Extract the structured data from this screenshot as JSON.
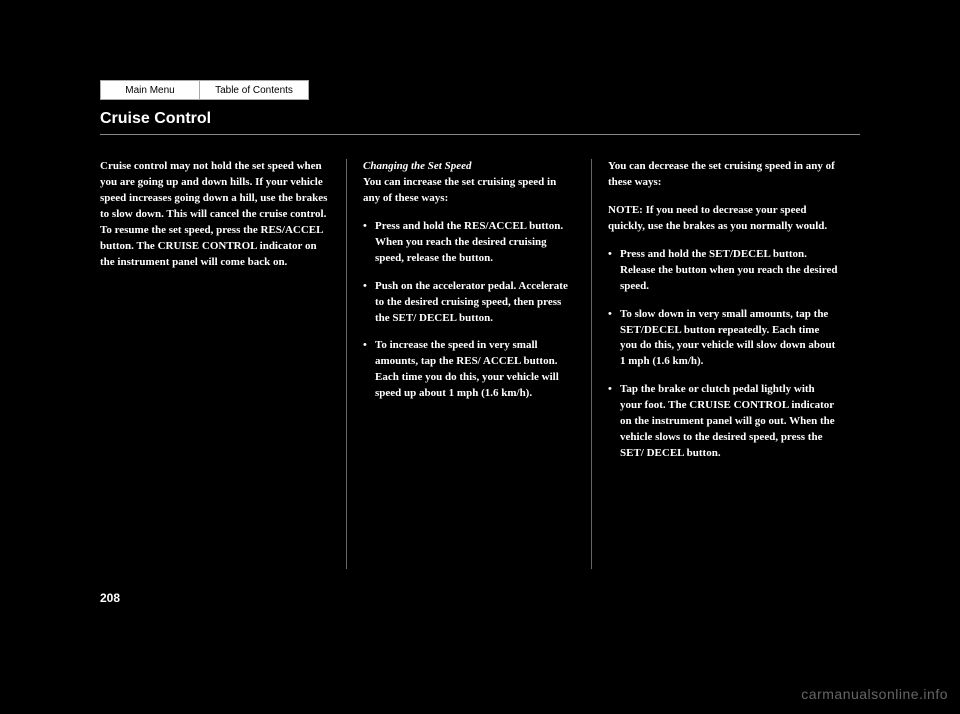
{
  "nav": {
    "main_menu": "Main Menu",
    "toc": "Table of Contents"
  },
  "title": "Cruise Control",
  "col1": {
    "p1": "Cruise control may not hold the set speed when you are going up and down hills. If your vehicle speed increases going down a hill, use the brakes to slow down. This will cancel the cruise control. To resume the set speed, press the RES/ACCEL button. The CRUISE CONTROL indicator on the instrument panel will come back on."
  },
  "col2": {
    "heading": "Changing the Set Speed",
    "intro": "You can increase the set cruising speed in any of these ways:",
    "b1": "Press and hold the RES/ACCEL button. When you reach the desired cruising speed, release the button.",
    "b2": "Push on the accelerator pedal. Accelerate to the desired cruising speed, then press the SET/ DECEL button.",
    "b3": "To increase the speed in very small amounts, tap the RES/ ACCEL button. Each time you do this, your vehicle will speed up about 1 mph (1.6 km/h)."
  },
  "col3": {
    "intro": "You can decrease the set cruising speed in any of these ways:",
    "note": "NOTE: If you need to decrease your speed quickly, use the brakes as you normally would.",
    "b1": "Press and hold the SET/DECEL button. Release the button when you reach the desired speed.",
    "b2": "To slow down in very small amounts, tap the SET/DECEL button repeatedly. Each time you do this, your vehicle will slow down about 1 mph (1.6 km/h).",
    "b3": "Tap the brake or clutch pedal lightly with your foot. The CRUISE CONTROL indicator on the instrument panel will go out. When the vehicle slows to the desired speed, press the SET/ DECEL button."
  },
  "page_number": "208",
  "watermark": "carmanualsonline.info"
}
